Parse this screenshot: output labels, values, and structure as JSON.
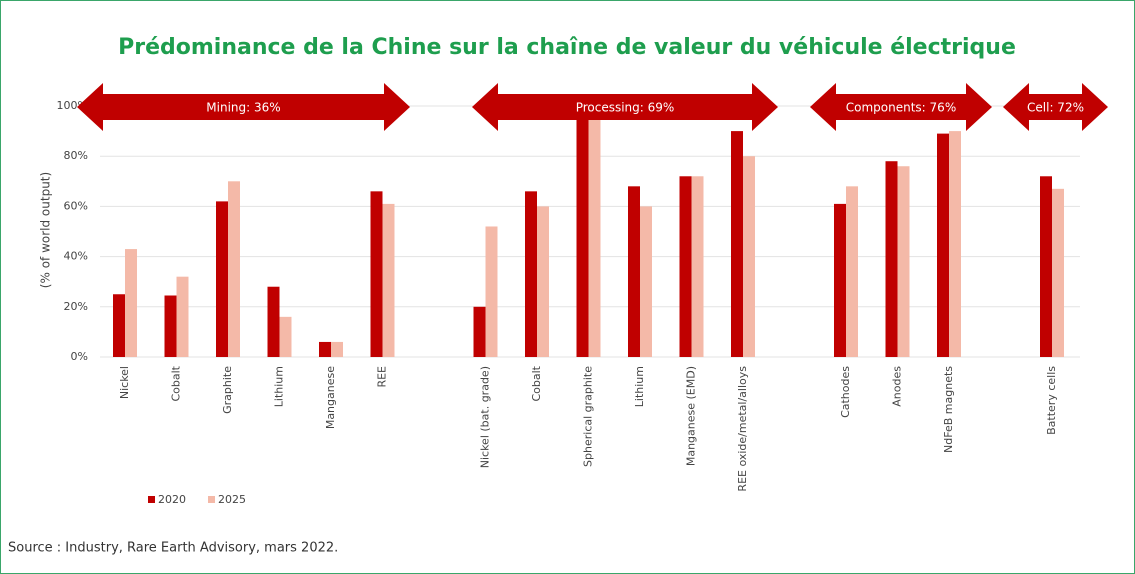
{
  "chart_data": {
    "type": "bar",
    "title": "Prédominance de la Chine sur la chaîne de valeur du véhicule électrique",
    "y_label": "(% of world output)",
    "source": "Source : Industry, Rare Earth Advisory, mars 2022.",
    "annotations": [
      "Mining: 36%",
      "Processing: 69%",
      "Components: 76%",
      "Cell: 72%"
    ],
    "categories": [
      "Nickel",
      "Cobalt",
      "Graphite",
      "Lithium",
      "Manganese",
      "REE",
      null,
      "Nickel (bat. grade)",
      "Cobalt",
      "Spherical graphite",
      "Lithium",
      "Manganese (EMD)",
      "REE oxide/metal/alloys",
      null,
      "Cathodes",
      "Anodes",
      "NdFeB magnets",
      null,
      "Battery cells"
    ],
    "series": [
      {
        "name": "2020",
        "color": "#c00000",
        "values": [
          25,
          24.5,
          62,
          28,
          6,
          66,
          null,
          20,
          66,
          100,
          68,
          72,
          90,
          null,
          61,
          78,
          89,
          null,
          72
        ]
      },
      {
        "name": "2025",
        "color": "#f4b9a8",
        "values": [
          43,
          32,
          70,
          16,
          6,
          61,
          null,
          52,
          60,
          100,
          60,
          72,
          80,
          null,
          68,
          76,
          90,
          null,
          67
        ]
      }
    ],
    "ylim": [
      0,
      100
    ],
    "yticks": [
      {
        "value": 0,
        "label": "0%"
      },
      {
        "value": 20,
        "label": "20%"
      },
      {
        "value": 40,
        "label": "40%"
      },
      {
        "value": 60,
        "label": "60%"
      },
      {
        "value": 80,
        "label": "80%"
      },
      {
        "value": 100,
        "label": "100%"
      }
    ],
    "grid": true,
    "legend": "bottom-left"
  }
}
